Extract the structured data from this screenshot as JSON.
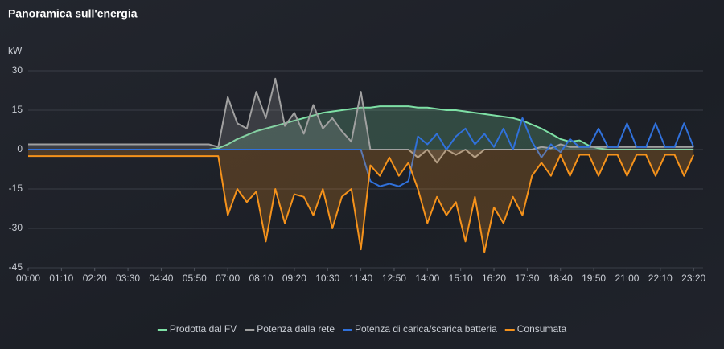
{
  "chart_data": {
    "type": "line",
    "title": "Panoramica sull'energia",
    "y_unit": "kW",
    "x": [
      0,
      20,
      40,
      60,
      80,
      100,
      120,
      140,
      160,
      180,
      200,
      220,
      240,
      260,
      280,
      300,
      320,
      340,
      360,
      380,
      400,
      420,
      440,
      460,
      480,
      500,
      520,
      540,
      560,
      580,
      600,
      620,
      640,
      660,
      680,
      700,
      720,
      740,
      760,
      780,
      800,
      820,
      840,
      860,
      880,
      900,
      920,
      940,
      960,
      980,
      1000,
      1020,
      1040,
      1060,
      1080,
      1100,
      1120,
      1140,
      1160,
      1180,
      1200,
      1220,
      1240,
      1260,
      1280,
      1300,
      1320,
      1340,
      1360,
      1380,
      1400
    ],
    "xlim": [
      0,
      1420
    ],
    "xticks": [
      {
        "value": 0,
        "label": "00:00"
      },
      {
        "value": 70,
        "label": "01:10"
      },
      {
        "value": 140,
        "label": "02:20"
      },
      {
        "value": 210,
        "label": "03:30"
      },
      {
        "value": 280,
        "label": "04:40"
      },
      {
        "value": 350,
        "label": "05:50"
      },
      {
        "value": 420,
        "label": "07:00"
      },
      {
        "value": 490,
        "label": "08:10"
      },
      {
        "value": 560,
        "label": "09:20"
      },
      {
        "value": 630,
        "label": "10:30"
      },
      {
        "value": 700,
        "label": "11:40"
      },
      {
        "value": 770,
        "label": "12:50"
      },
      {
        "value": 840,
        "label": "14:00"
      },
      {
        "value": 910,
        "label": "15:10"
      },
      {
        "value": 980,
        "label": "16:20"
      },
      {
        "value": 1050,
        "label": "17:30"
      },
      {
        "value": 1120,
        "label": "18:40"
      },
      {
        "value": 1190,
        "label": "19:50"
      },
      {
        "value": 1260,
        "label": "21:00"
      },
      {
        "value": 1330,
        "label": "22:10"
      },
      {
        "value": 1400,
        "label": "23:20"
      }
    ],
    "ylim": [
      -45,
      30
    ],
    "yticks": [
      30,
      15,
      0,
      -15,
      -30,
      -45
    ],
    "grid": true,
    "series": [
      {
        "name": "Prodotta dal FV",
        "color": "#7ee0a5",
        "fill": true,
        "values": [
          0,
          0,
          0,
          0,
          0,
          0,
          0,
          0,
          0,
          0,
          0,
          0,
          0,
          0,
          0,
          0,
          0,
          0,
          0,
          0,
          0.5,
          2,
          4,
          5.5,
          7,
          8,
          9,
          10,
          11,
          12,
          13,
          14,
          14.5,
          15,
          15.5,
          16,
          16,
          16.5,
          16.5,
          16.5,
          16.5,
          16,
          16,
          15.5,
          15,
          15,
          14.5,
          14,
          13.5,
          13,
          12.5,
          12,
          11,
          9.5,
          8,
          6,
          4,
          3,
          3.5,
          1.5,
          0.5,
          0,
          0,
          0,
          0,
          0,
          0,
          0,
          0,
          0,
          0
        ]
      },
      {
        "name": "Potenza dalla rete",
        "color": "#a0a0a0",
        "fill": true,
        "values": [
          2,
          2,
          2,
          2,
          2,
          2,
          2,
          2,
          2,
          2,
          2,
          2,
          2,
          2,
          2,
          2,
          2,
          2,
          2,
          2,
          1,
          20,
          10,
          8,
          22,
          12,
          27,
          9,
          14,
          6,
          17,
          8,
          12,
          7,
          3,
          22,
          0,
          0,
          0,
          0,
          0,
          -3,
          0,
          -5,
          0,
          -2,
          0,
          -3,
          0,
          0,
          0,
          0,
          0,
          0,
          1,
          0.5,
          2,
          1,
          1,
          1,
          1,
          1,
          1,
          1,
          1,
          1,
          1,
          1,
          1,
          1,
          1
        ]
      },
      {
        "name": "Potenza di carica/scarica batteria",
        "color": "#3071db",
        "fill": false,
        "values": [
          0,
          0,
          0,
          0,
          0,
          0,
          0,
          0,
          0,
          0,
          0,
          0,
          0,
          0,
          0,
          0,
          0,
          0,
          0,
          0,
          0,
          0,
          0,
          0,
          0,
          0,
          0,
          0,
          0,
          0,
          0,
          0,
          0,
          0,
          0,
          0,
          -12,
          -14,
          -13,
          -14,
          -12,
          5,
          2,
          6,
          0,
          5,
          8,
          2,
          6,
          1,
          8,
          0,
          12,
          3,
          -3,
          2,
          -1,
          4,
          1,
          1,
          8,
          1,
          1,
          10,
          1,
          1,
          10,
          1,
          1,
          10,
          1
        ]
      },
      {
        "name": "Consumata",
        "color": "#f5921b",
        "fill": true,
        "values": [
          -2.5,
          -2.5,
          -2.5,
          -2.5,
          -2.5,
          -2.5,
          -2.5,
          -2.5,
          -2.5,
          -2.5,
          -2.5,
          -2.5,
          -2.5,
          -2.5,
          -2.5,
          -2.5,
          -2.5,
          -2.5,
          -2.5,
          -2.5,
          -2.5,
          -25,
          -15,
          -20,
          -16,
          -35,
          -15,
          -28,
          -17,
          -18,
          -25,
          -15,
          -30,
          -18,
          -15,
          -38,
          -6,
          -10,
          -3,
          -10,
          -5,
          -15,
          -28,
          -18,
          -25,
          -20,
          -35,
          -18,
          -39,
          -22,
          -28,
          -18,
          -25,
          -10,
          -5,
          -10,
          -2,
          -10,
          -2,
          -2,
          -10,
          -2,
          -2,
          -10,
          -2,
          -2,
          -10,
          -2,
          -2,
          -10,
          -2
        ]
      }
    ]
  }
}
